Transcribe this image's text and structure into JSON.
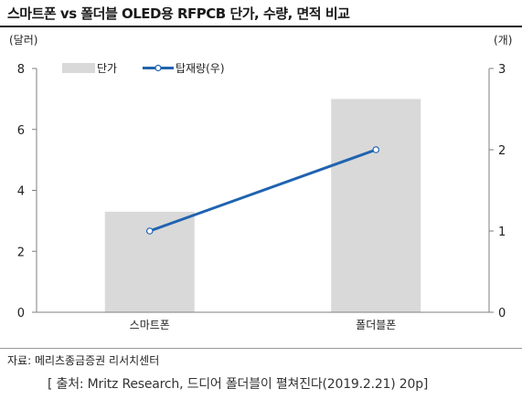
{
  "title": "스마트폰 vs 폴더블 OLED용 RFPCB 단가, 수량, 면적 비교",
  "source": "자료: 메리츠종금증권 리서치센터",
  "citation": "[ 출처: Mritz Research, 드디어 폴더블이 펼쳐진다(2019.2.21) 20p]",
  "colors": {
    "bar": "#d9d9d9",
    "line": "#1f63b0",
    "axis": "#7f7f7f"
  },
  "chart_data": {
    "type": "bar+line",
    "categories": [
      "스마트폰",
      "폴더블폰"
    ],
    "series": [
      {
        "name": "단가",
        "type": "bar",
        "axis": "left",
        "values": [
          3.3,
          7.0
        ]
      },
      {
        "name": "탑재량(우)",
        "type": "line",
        "axis": "right",
        "values": [
          1,
          2
        ]
      }
    ],
    "y_left": {
      "label": "(달러)",
      "ticks": [
        "0",
        "2",
        "4",
        "6",
        "8"
      ],
      "range": [
        0,
        8
      ]
    },
    "y_right": {
      "label": "(개)",
      "ticks": [
        "0",
        "1",
        "2",
        "3"
      ],
      "range": [
        0,
        3
      ]
    },
    "legend_position": "top-left",
    "grid": false
  }
}
